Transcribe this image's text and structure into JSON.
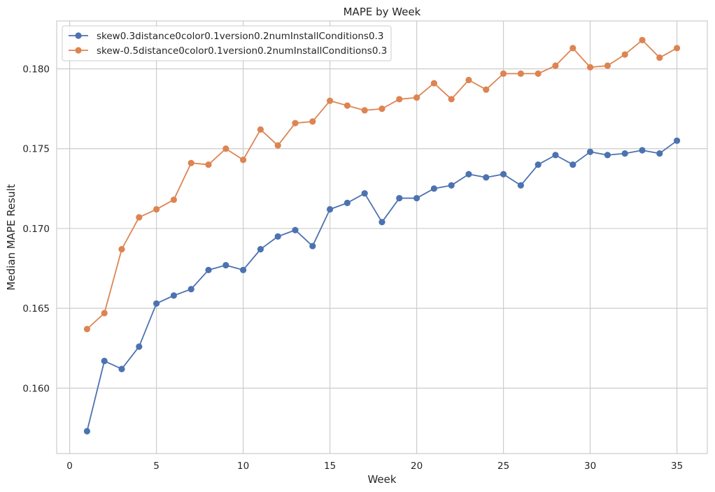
{
  "chart_data": {
    "type": "line",
    "title": "MAPE by Week",
    "xlabel": "Week",
    "ylabel": "Median MAPE Result",
    "xlim": [
      -0.75,
      36.75
    ],
    "ylim": [
      0.1559,
      0.183
    ],
    "xticks": [
      0,
      5,
      10,
      15,
      20,
      25,
      30,
      35
    ],
    "xtick_labels": [
      "0",
      "5",
      "10",
      "15",
      "20",
      "25",
      "30",
      "35"
    ],
    "yticks": [
      0.16,
      0.165,
      0.17,
      0.175,
      0.18
    ],
    "ytick_labels": [
      "0.160",
      "0.165",
      "0.170",
      "0.175",
      "0.180"
    ],
    "grid": true,
    "legend_position": "top-left",
    "x": [
      1,
      2,
      3,
      4,
      5,
      6,
      7,
      8,
      9,
      10,
      11,
      12,
      13,
      14,
      15,
      16,
      17,
      18,
      19,
      20,
      21,
      22,
      23,
      24,
      25,
      26,
      27,
      28,
      29,
      30,
      31,
      32,
      33,
      34,
      35
    ],
    "series": [
      {
        "name": "skew0.3distance0color0.1version0.2numInstallConditions0.3",
        "color": "#4c72b0",
        "values": [
          0.1573,
          0.1617,
          0.1612,
          0.1626,
          0.1653,
          0.1658,
          0.1662,
          0.1674,
          0.1677,
          0.1674,
          0.1687,
          0.1695,
          0.1699,
          0.1689,
          0.1712,
          0.1716,
          0.1722,
          0.1704,
          0.1719,
          0.1719,
          0.1725,
          0.1727,
          0.1734,
          0.1732,
          0.1734,
          0.1727,
          0.174,
          0.1746,
          0.174,
          0.1748,
          0.1746,
          0.1747,
          0.1749,
          0.1747,
          0.1755
        ]
      },
      {
        "name": "skew-0.5distance0color0.1version0.2numInstallConditions0.3",
        "color": "#dd8452",
        "values": [
          0.1637,
          0.1647,
          0.1687,
          0.1707,
          0.1712,
          0.1718,
          0.1741,
          0.174,
          0.175,
          0.1743,
          0.1762,
          0.1752,
          0.1766,
          0.1767,
          0.178,
          0.1777,
          0.1774,
          0.1775,
          0.1781,
          0.1782,
          0.1791,
          0.1781,
          0.1793,
          0.1787,
          0.1797,
          0.1797,
          0.1797,
          0.1802,
          0.1813,
          0.1801,
          0.1802,
          0.1809,
          0.1818,
          0.1807,
          0.1813
        ]
      }
    ]
  }
}
